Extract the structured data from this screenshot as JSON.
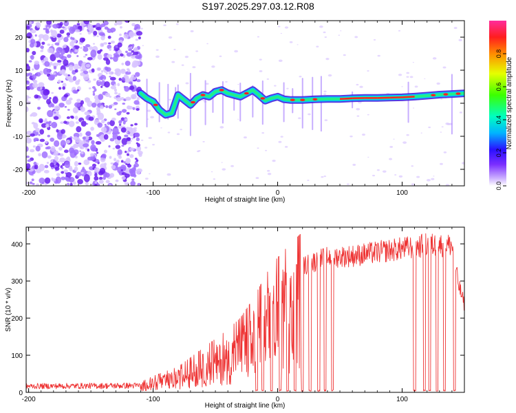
{
  "title": "S197.2025.297.03.12.R08",
  "colors": {
    "snr_line": "#ee3333",
    "scatter": "#8844ee",
    "ridge_core": "#ff2222",
    "ridge_band": "#22ee88",
    "ridge_edge": "#4422dd"
  },
  "chart_data": [
    {
      "id": "spectrogram",
      "type": "heatmap",
      "xlabel": "Height of straight line (km)",
      "ylabel": "Frequency (Hz)",
      "xlim": [
        -202,
        150
      ],
      "ylim": [
        -25,
        25
      ],
      "xticks": [
        "-200",
        "-100",
        "0",
        "100"
      ],
      "xtick_values": [
        -200,
        -100,
        0,
        100
      ],
      "yticks": [
        "20",
        "10",
        "0",
        "-10",
        "-20"
      ],
      "ytick_values": [
        20,
        10,
        0,
        -10,
        -20
      ],
      "colorbar": {
        "label": "Normalized spectral amplitude",
        "range": [
          0,
          1
        ],
        "ticks": [
          "0.0",
          "0.2",
          "0.4",
          "0.6",
          "0.8"
        ],
        "tick_values": [
          0.0,
          0.2,
          0.4,
          0.6,
          0.8
        ]
      },
      "ridge_frequency": [
        [
          -110,
          3.0
        ],
        [
          -105,
          1.5
        ],
        [
          -100,
          0.5
        ],
        [
          -95,
          -2.0
        ],
        [
          -90,
          -3.5
        ],
        [
          -85,
          -3.0
        ],
        [
          -80,
          2.5
        ],
        [
          -75,
          1.0
        ],
        [
          -70,
          -0.5
        ],
        [
          -65,
          1.5
        ],
        [
          -60,
          2.5
        ],
        [
          -55,
          2.0
        ],
        [
          -50,
          3.5
        ],
        [
          -45,
          4.0
        ],
        [
          -40,
          3.0
        ],
        [
          -35,
          2.5
        ],
        [
          -30,
          2.0
        ],
        [
          -25,
          3.0
        ],
        [
          -20,
          4.0
        ],
        [
          -15,
          2.5
        ],
        [
          -10,
          0.8
        ],
        [
          -5,
          1.5
        ],
        [
          0,
          2.0
        ],
        [
          5,
          1.2
        ],
        [
          10,
          1.0
        ],
        [
          20,
          1.0
        ],
        [
          30,
          1.2
        ],
        [
          40,
          1.3
        ],
        [
          50,
          1.3
        ],
        [
          60,
          1.5
        ],
        [
          70,
          1.6
        ],
        [
          80,
          1.6
        ],
        [
          90,
          1.7
        ],
        [
          100,
          1.8
        ],
        [
          110,
          2.0
        ],
        [
          120,
          2.3
        ],
        [
          130,
          2.6
        ],
        [
          140,
          2.8
        ],
        [
          150,
          3.0
        ]
      ],
      "noise_region_x": [
        -202,
        -110
      ]
    },
    {
      "id": "snr",
      "type": "line",
      "xlabel": "Height of straight line (km)",
      "ylabel": "SNR (10 * v/v)",
      "xlim": [
        -202,
        150
      ],
      "ylim": [
        0,
        445
      ],
      "xticks": [
        "-200",
        "-100",
        "0",
        "100"
      ],
      "xtick_values": [
        -200,
        -100,
        0,
        100
      ],
      "yticks": [
        "0",
        "100",
        "200",
        "300",
        "400"
      ],
      "ytick_values": [
        0,
        100,
        200,
        300,
        400
      ],
      "envelope": [
        [
          -202,
          20
        ],
        [
          -110,
          22
        ],
        [
          -100,
          35
        ],
        [
          -90,
          45
        ],
        [
          -80,
          55
        ],
        [
          -70,
          75
        ],
        [
          -60,
          95
        ],
        [
          -50,
          115
        ],
        [
          -40,
          135
        ],
        [
          -30,
          160
        ],
        [
          -20,
          200
        ],
        [
          -10,
          250
        ],
        [
          -5,
          275
        ],
        [
          0,
          290
        ],
        [
          10,
          320
        ],
        [
          20,
          345
        ],
        [
          30,
          360
        ],
        [
          40,
          372
        ],
        [
          60,
          375
        ],
        [
          80,
          385
        ],
        [
          100,
          395
        ],
        [
          120,
          405
        ],
        [
          140,
          405
        ],
        [
          145,
          300
        ],
        [
          150,
          240
        ]
      ],
      "dropouts": [
        -17,
        -12,
        -5,
        2,
        8,
        14,
        20,
        26,
        33,
        38,
        44,
        110,
        118,
        122,
        128,
        134,
        142
      ]
    }
  ]
}
